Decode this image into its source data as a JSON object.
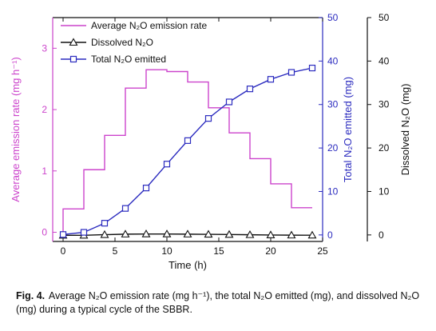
{
  "chart_data": {
    "type": "line",
    "x_axis": {
      "label": "Time (h)",
      "range": [
        -1,
        25
      ],
      "ticks": [
        0,
        5,
        10,
        15,
        20,
        25
      ]
    },
    "left_axis": {
      "label": "Average emission rate (mg h⁻¹)",
      "range": [
        -0.15,
        3.5
      ],
      "ticks": [
        0,
        1,
        2,
        3
      ],
      "color": "#cc44cc"
    },
    "mid_right_axis": {
      "label": "Total N₂O emitted (mg)",
      "range": [
        -1.5,
        50
      ],
      "ticks": [
        0,
        10,
        20,
        30,
        40,
        50
      ],
      "color": "#2b2bbf"
    },
    "far_right_axis": {
      "label": "Dissolved N₂O (mg)",
      "range": [
        -1.5,
        50
      ],
      "ticks": [
        0,
        10,
        20,
        30,
        40,
        50
      ],
      "color": "#111111"
    },
    "series": [
      {
        "name": "Average N₂O emission rate",
        "axis": "left",
        "kind": "step",
        "color": "#cc44cc",
        "x": [
          0,
          2,
          4,
          6,
          8,
          10,
          12,
          14,
          16,
          18,
          20,
          22,
          24
        ],
        "values": [
          0.38,
          1.02,
          1.58,
          2.35,
          2.65,
          2.62,
          2.45,
          2.03,
          1.62,
          1.2,
          0.79,
          0.4,
          0.4
        ]
      },
      {
        "name": "Dissolved N₂O",
        "axis": "far_right",
        "kind": "line",
        "marker": "triangle",
        "color": "#111111",
        "x": [
          0,
          2,
          4,
          6,
          8,
          10,
          12,
          14,
          16,
          18,
          20,
          22,
          24
        ],
        "values": [
          -0.09,
          -0.08,
          0.06,
          0.18,
          0.22,
          0.21,
          0.18,
          0.14,
          0.1,
          0.04,
          -0.01,
          -0.05,
          -0.07
        ]
      },
      {
        "name": "Total N₂O emitted",
        "axis": "mid_right",
        "kind": "line",
        "marker": "square",
        "color": "#2b2bbf",
        "x": [
          0,
          2,
          4,
          6,
          8,
          10,
          12,
          14,
          16,
          18,
          20,
          22,
          24
        ],
        "values": [
          0.1,
          0.6,
          2.7,
          6.1,
          10.8,
          16.3,
          21.7,
          26.8,
          30.6,
          33.6,
          35.8,
          37.4,
          38.4
        ]
      }
    ],
    "legend": {
      "placement": "top-left",
      "items": [
        {
          "label": "Average N₂O emission rate",
          "color": "#cc44cc",
          "marker": "none"
        },
        {
          "label": "Dissolved N₂O",
          "color": "#111111",
          "marker": "triangle"
        },
        {
          "label": "Total N₂O emitted",
          "color": "#2b2bbf",
          "marker": "square"
        }
      ]
    }
  },
  "caption": {
    "label": "Fig. 4.",
    "text": "Average N₂O emission rate (mg h⁻¹), the total N₂O emitted (mg), and dissolved N₂O (mg) during a typical cycle of the SBBR."
  }
}
